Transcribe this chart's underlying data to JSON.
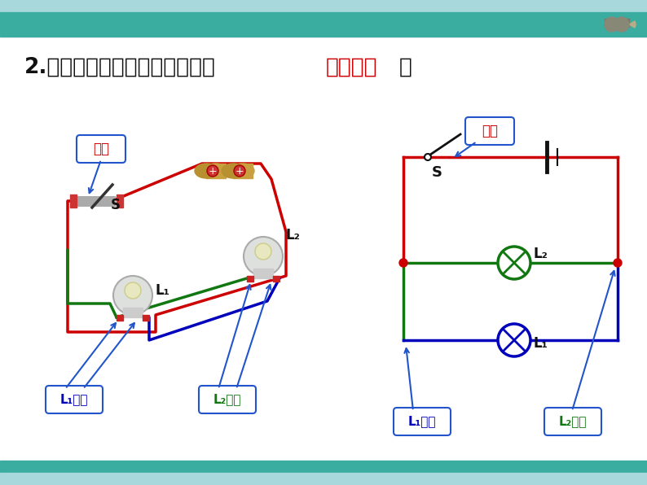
{
  "bg_color": "#ffffff",
  "header_top_color": "#a8d8dc",
  "header_bar_color": "#3aada0",
  "footer_bar_color": "#3aada0",
  "footer_top_color": "#a8d8dc",
  "title_black": "2.　用电器并列相连的电路叫做",
  "title_red": "并联电路",
  "title_end": "。",
  "label_S": "S",
  "label_L1": "L₁",
  "label_L2": "L₂",
  "label_branch1_blue": "L₁支路",
  "label_branch2_green": "L₂支路",
  "label_trunk": "干路",
  "red": "#cc0000",
  "green": "#117711",
  "blue": "#0000bb",
  "dark": "#111111",
  "teal": "#3aada0",
  "wire_lw": 2.5
}
